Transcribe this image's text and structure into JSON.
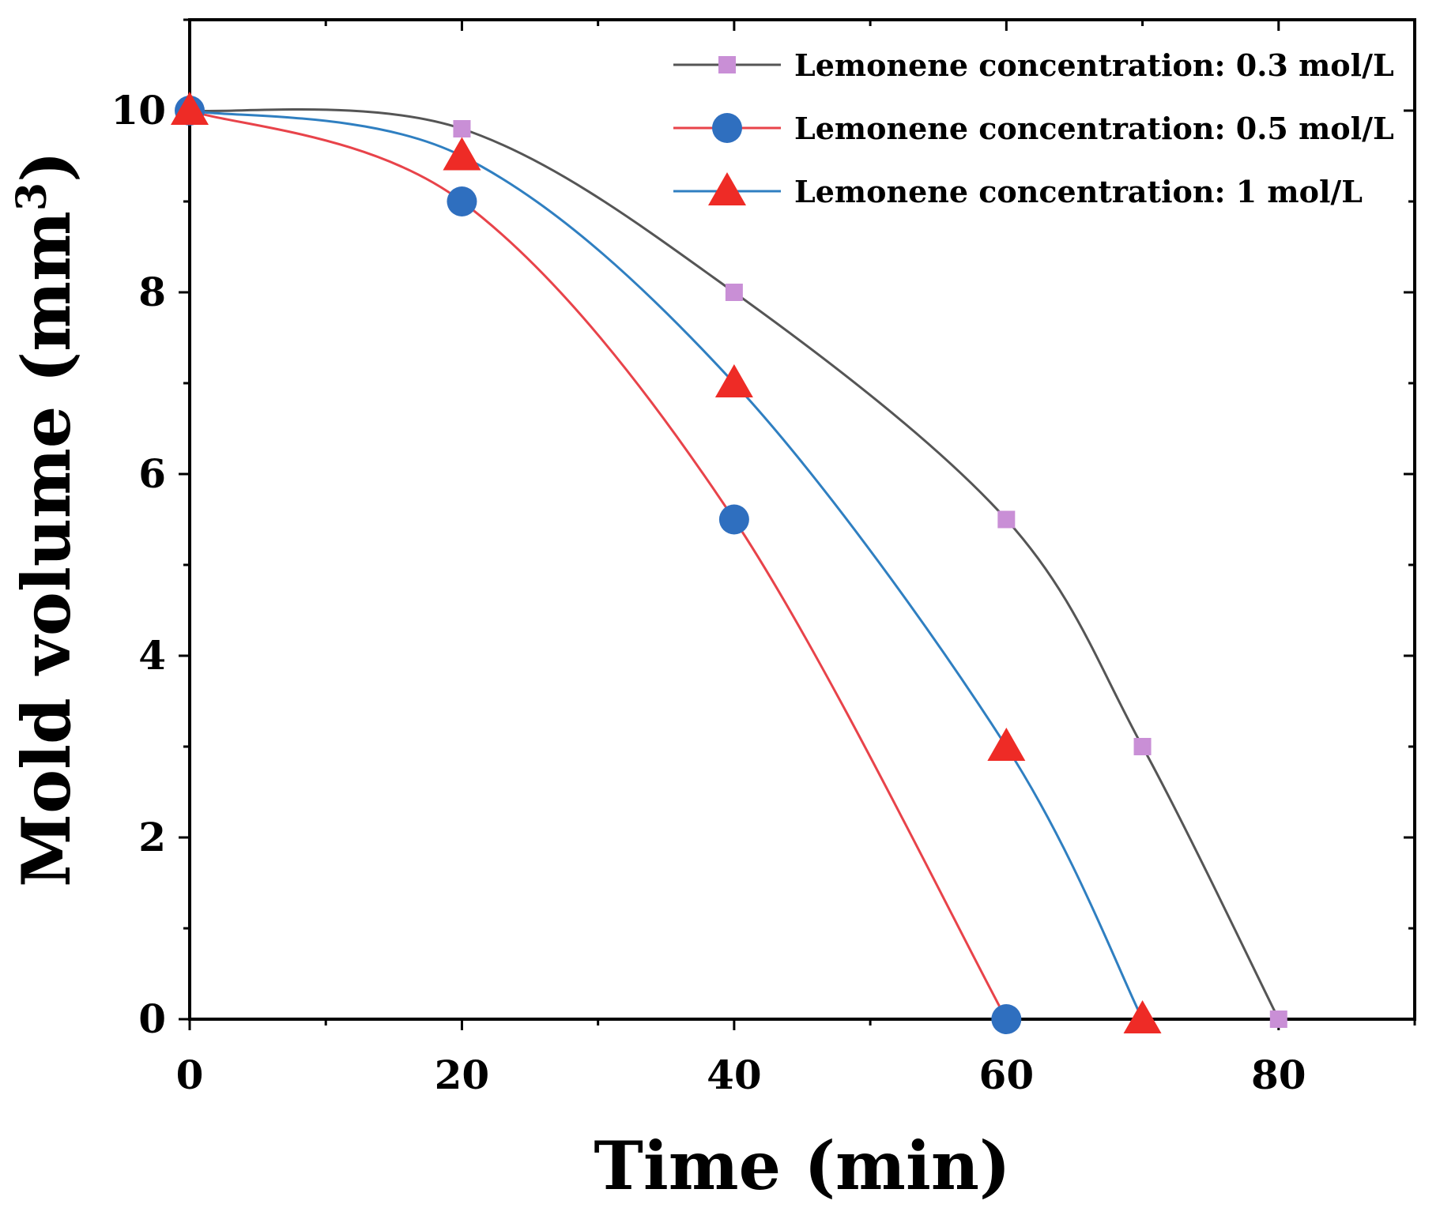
{
  "chart_data": {
    "type": "line",
    "title": "",
    "xlabel": "Time (min)",
    "ylabel": "Mold volume (mm",
    "ylabel_superscript": "3",
    "ylabel_close": ")",
    "xlim": [
      0,
      90
    ],
    "ylim": [
      0,
      11
    ],
    "xticks": [
      0,
      20,
      40,
      60,
      80
    ],
    "yticks": [
      0,
      2,
      4,
      6,
      8,
      10
    ],
    "grid": false,
    "legend_position": "top-right",
    "series": [
      {
        "name": "Lemonene concentration: 0.3 mol/L",
        "marker": "square",
        "line_color": "#555555",
        "marker_color": "#c98fd6",
        "x": [
          0,
          20,
          40,
          60,
          70,
          80
        ],
        "y": [
          10,
          9.8,
          8,
          5.5,
          3,
          0
        ]
      },
      {
        "name": "Lemonene concentration: 0.5 mol/L",
        "marker": "circle",
        "line_color": "#e8434a",
        "marker_color": "#2f6fbf",
        "x": [
          0,
          20,
          40,
          60
        ],
        "y": [
          10,
          9,
          5.5,
          0
        ]
      },
      {
        "name": "Lemonene concentration: 1 mol/L",
        "marker": "triangle",
        "line_color": "#2f7fc1",
        "marker_color": "#ee2b26",
        "x": [
          0,
          20,
          40,
          60,
          70
        ],
        "y": [
          10,
          9.5,
          7,
          3,
          0
        ]
      }
    ]
  }
}
